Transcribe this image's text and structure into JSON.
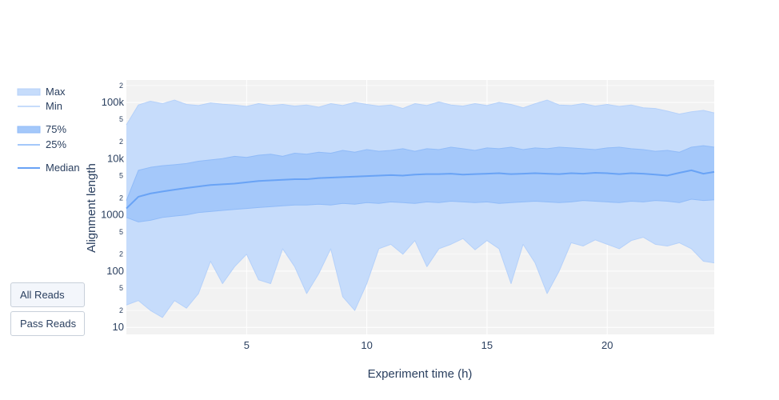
{
  "chart_data": {
    "type": "area",
    "title": "",
    "xlabel": "Experiment time (h)",
    "ylabel": "Alignment length",
    "xlim": [
      0,
      24.45
    ],
    "ylim": [
      7.5,
      250000
    ],
    "y_scale": "log",
    "x_ticks": [
      5,
      10,
      15,
      20
    ],
    "y_major_ticks": [
      {
        "value": 10,
        "label": "10"
      },
      {
        "value": 100,
        "label": "100"
      },
      {
        "value": 1000,
        "label": "1000"
      },
      {
        "value": 10000,
        "label": "10k"
      },
      {
        "value": 100000,
        "label": "100k"
      }
    ],
    "y_minor_ticks": [
      {
        "value": 20,
        "label": "2"
      },
      {
        "value": 50,
        "label": "5"
      },
      {
        "value": 200,
        "label": "2"
      },
      {
        "value": 500,
        "label": "5"
      },
      {
        "value": 2000,
        "label": "2"
      },
      {
        "value": 5000,
        "label": "5"
      },
      {
        "value": 20000,
        "label": "2"
      },
      {
        "value": 50000,
        "label": "5"
      },
      {
        "value": 200000,
        "label": "2"
      }
    ],
    "grid": true,
    "legend_position": "left",
    "x": [
      0,
      0.5,
      1,
      1.5,
      2,
      2.5,
      3,
      3.5,
      4,
      4.5,
      5,
      5.5,
      6,
      6.5,
      7,
      7.5,
      8,
      8.5,
      9,
      9.5,
      10,
      10.5,
      11,
      11.5,
      12,
      12.5,
      13,
      13.5,
      14,
      14.5,
      15,
      15.5,
      16,
      16.5,
      17,
      17.5,
      18,
      18.5,
      19,
      19.5,
      20,
      20.5,
      21,
      21.5,
      22,
      22.5,
      23,
      23.5,
      24,
      24.45
    ],
    "series": [
      {
        "name": "Max",
        "values": [
          40000,
          90000,
          105000,
          95000,
          110000,
          92000,
          88000,
          98000,
          93000,
          90000,
          85000,
          95000,
          88000,
          92000,
          86000,
          90000,
          82000,
          95000,
          88000,
          100000,
          92000,
          86000,
          90000,
          78000,
          95000,
          88000,
          102000,
          90000,
          86000,
          95000,
          88000,
          100000,
          92000,
          80000,
          95000,
          110000,
          90000,
          88000,
          95000,
          86000,
          92000,
          85000,
          90000,
          80000,
          78000,
          70000,
          62000,
          68000,
          72000,
          65000
        ],
        "color": "#c6dcfb"
      },
      {
        "name": "Min",
        "values": [
          25,
          30,
          20,
          15,
          30,
          22,
          40,
          150,
          60,
          120,
          200,
          70,
          60,
          250,
          120,
          40,
          90,
          250,
          35,
          20,
          60,
          250,
          300,
          200,
          350,
          120,
          250,
          300,
          380,
          240,
          350,
          250,
          60,
          300,
          140,
          40,
          100,
          320,
          280,
          360,
          300,
          250,
          350,
          400,
          300,
          280,
          320,
          250,
          150,
          140
        ],
        "color": "#c6dcfb"
      },
      {
        "name": "75%",
        "values": [
          1800,
          6200,
          7000,
          7500,
          7800,
          8200,
          9000,
          9500,
          10000,
          11000,
          10500,
          11500,
          12000,
          11000,
          12500,
          12000,
          13000,
          12500,
          14000,
          13000,
          14500,
          13500,
          14000,
          15000,
          13500,
          15000,
          14500,
          16000,
          15000,
          14000,
          15500,
          15000,
          16000,
          14500,
          15500,
          15000,
          16000,
          15500,
          15000,
          14500,
          15500,
          16000,
          15000,
          14500,
          13500,
          14000,
          13000,
          16000,
          17000,
          16000
        ],
        "color": "#a4c8fa"
      },
      {
        "name": "25%",
        "values": [
          900,
          750,
          800,
          900,
          950,
          1000,
          1100,
          1150,
          1200,
          1250,
          1300,
          1350,
          1400,
          1450,
          1500,
          1500,
          1550,
          1500,
          1600,
          1550,
          1650,
          1600,
          1700,
          1650,
          1600,
          1700,
          1650,
          1750,
          1700,
          1650,
          1700,
          1600,
          1650,
          1700,
          1750,
          1700,
          1650,
          1700,
          1800,
          1750,
          1700,
          1650,
          1750,
          1700,
          1800,
          1750,
          1650,
          1900,
          1800,
          1850
        ],
        "color": "#a4c8fa"
      },
      {
        "name": "Median",
        "values": [
          1300,
          2100,
          2400,
          2600,
          2800,
          3000,
          3200,
          3400,
          3500,
          3600,
          3800,
          4000,
          4100,
          4200,
          4300,
          4300,
          4500,
          4600,
          4700,
          4800,
          4900,
          5000,
          5100,
          5000,
          5200,
          5300,
          5300,
          5400,
          5200,
          5300,
          5400,
          5500,
          5300,
          5400,
          5500,
          5400,
          5300,
          5500,
          5400,
          5600,
          5500,
          5300,
          5500,
          5400,
          5200,
          5000,
          5600,
          6200,
          5400,
          5800
        ],
        "color": "#69a3f5"
      }
    ]
  },
  "legend": {
    "items": [
      {
        "label": "Max",
        "style": "band"
      },
      {
        "label": "Min",
        "style": "thin"
      },
      {
        "label": "75%",
        "style": "band2"
      },
      {
        "label": "25%",
        "style": "thin2"
      },
      {
        "label": "Median",
        "style": "line"
      }
    ]
  },
  "controls": {
    "all_reads_label": "All Reads",
    "pass_reads_label": "Pass Reads"
  },
  "colors": {
    "plot_bg": "#f2f2f2",
    "grid": "#ffffff",
    "outer_band": "#c6dcfb",
    "inner_band": "#a4c8fa",
    "median": "#69a3f5",
    "text": "#2a3f5f"
  }
}
